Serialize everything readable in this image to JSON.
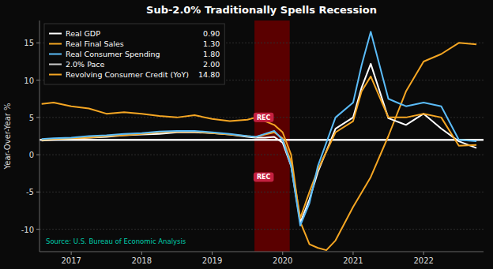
{
  "chart_data": {
    "type": "line",
    "title": "Sub-2.0% Traditionally Spells Recession",
    "y_label": "Year-Over-Year %",
    "source": "Source: U.S. Bureau of Economic Analysis",
    "xlim": [
      2016.55,
      2022.85
    ],
    "ylim": [
      -13,
      18
    ],
    "xticks": [
      2017,
      2018,
      2019,
      2020,
      2021,
      2022
    ],
    "yticks": [
      -10,
      -5,
      0,
      5,
      10,
      15
    ],
    "grid": true,
    "legend": "upper left",
    "shaded_regions": [
      {
        "x0": 2019.6,
        "x1": 2020.1,
        "color": "#5a0000"
      }
    ],
    "hlines": [
      {
        "y": 2.0,
        "color": "#ffffff"
      }
    ],
    "series": [
      {
        "color": "#f5a623",
        "x": [
          2016.58,
          2016.75,
          2017.0,
          2017.25,
          2017.5,
          2017.75,
          2018.0,
          2018.25,
          2018.5,
          2018.75,
          2019.0,
          2019.25,
          2019.5,
          2019.62,
          2019.75,
          2019.88,
          2020.0,
          2020.12,
          2020.25,
          2020.38,
          2020.5,
          2020.62,
          2020.75,
          2021.0,
          2021.25,
          2021.5,
          2021.75,
          2022.0,
          2022.25,
          2022.5,
          2022.75
        ],
        "values": [
          6.8,
          7.0,
          6.5,
          6.2,
          5.5,
          5.7,
          5.5,
          5.2,
          5.0,
          5.3,
          4.8,
          4.5,
          4.7,
          5.0,
          4.5,
          4.0,
          3.0,
          0.0,
          -9.0,
          -12.0,
          -12.5,
          -12.8,
          -11.5,
          -7.0,
          -3.0,
          2.5,
          8.5,
          12.5,
          13.5,
          15.0,
          14.8
        ]
      },
      {
        "color": "#ffffff",
        "x": [
          2016.58,
          2016.75,
          2017.0,
          2017.25,
          2017.5,
          2017.75,
          2018.0,
          2018.25,
          2018.5,
          2018.75,
          2019.0,
          2019.25,
          2019.5,
          2019.62,
          2019.75,
          2019.88,
          2020.0,
          2020.12,
          2020.25,
          2020.38,
          2020.5,
          2020.75,
          2021.0,
          2021.12,
          2021.25,
          2021.5,
          2021.75,
          2022.0,
          2022.25,
          2022.5,
          2022.75
        ],
        "values": [
          1.9,
          2.0,
          2.1,
          2.3,
          2.4,
          2.6,
          2.7,
          2.8,
          3.0,
          3.0,
          2.9,
          2.7,
          2.4,
          2.3,
          2.3,
          2.4,
          1.6,
          -1.5,
          -9.1,
          -6.0,
          -2.3,
          3.5,
          5.0,
          9.0,
          12.2,
          4.9,
          4.0,
          5.5,
          3.5,
          1.8,
          0.9
        ]
      },
      {
        "color": "#f5a623",
        "x": [
          2016.58,
          2016.75,
          2017.0,
          2017.25,
          2017.5,
          2017.75,
          2018.0,
          2018.25,
          2018.5,
          2018.75,
          2019.0,
          2019.25,
          2019.5,
          2019.62,
          2019.75,
          2019.88,
          2020.0,
          2020.12,
          2020.25,
          2020.38,
          2020.5,
          2020.75,
          2021.0,
          2021.12,
          2021.25,
          2021.5,
          2021.75,
          2022.0,
          2022.25,
          2022.5,
          2022.75
        ],
        "values": [
          2.0,
          2.1,
          2.2,
          2.3,
          2.5,
          2.6,
          2.8,
          3.0,
          3.1,
          3.1,
          2.9,
          2.7,
          2.5,
          2.4,
          2.7,
          3.0,
          2.2,
          -1.0,
          -8.5,
          -5.0,
          -2.0,
          3.0,
          4.5,
          8.5,
          10.5,
          5.0,
          5.0,
          5.5,
          5.0,
          1.2,
          1.3
        ]
      },
      {
        "color": "#5bbcf8",
        "x": [
          2016.58,
          2016.75,
          2017.0,
          2017.25,
          2017.5,
          2017.75,
          2018.0,
          2018.25,
          2018.5,
          2018.75,
          2019.0,
          2019.25,
          2019.5,
          2019.62,
          2019.75,
          2019.88,
          2020.0,
          2020.12,
          2020.25,
          2020.38,
          2020.5,
          2020.75,
          2021.0,
          2021.12,
          2021.25,
          2021.5,
          2021.75,
          2022.0,
          2022.25,
          2022.5,
          2022.75
        ],
        "values": [
          2.1,
          2.2,
          2.3,
          2.5,
          2.6,
          2.8,
          2.9,
          3.1,
          3.2,
          3.2,
          3.0,
          2.8,
          2.5,
          2.4,
          2.8,
          3.2,
          2.0,
          -1.5,
          -9.5,
          -6.5,
          -1.5,
          5.0,
          7.0,
          12.0,
          16.5,
          7.5,
          6.5,
          7.0,
          6.5,
          2.0,
          1.8
        ]
      }
    ],
    "legend_entries": [
      {
        "label": "Real GDP",
        "color": "#ffffff",
        "value": "0.90"
      },
      {
        "label": "Real Final Sales",
        "color": "#f5a623",
        "value": "1.30"
      },
      {
        "label": "Real Consumer Spending",
        "color": "#5bbcf8",
        "value": "1.80"
      },
      {
        "label": "2.0% Pace",
        "color": "#cccccc",
        "value": "2.00"
      },
      {
        "label": "Revolving Consumer Credit (YoY)",
        "color": "#f5a623",
        "value": "14.80"
      }
    ],
    "annotations": [
      {
        "text": "REC",
        "x": 2019.73,
        "y": 5.0
      },
      {
        "text": "REC",
        "x": 2019.73,
        "y": -3.0
      }
    ]
  }
}
